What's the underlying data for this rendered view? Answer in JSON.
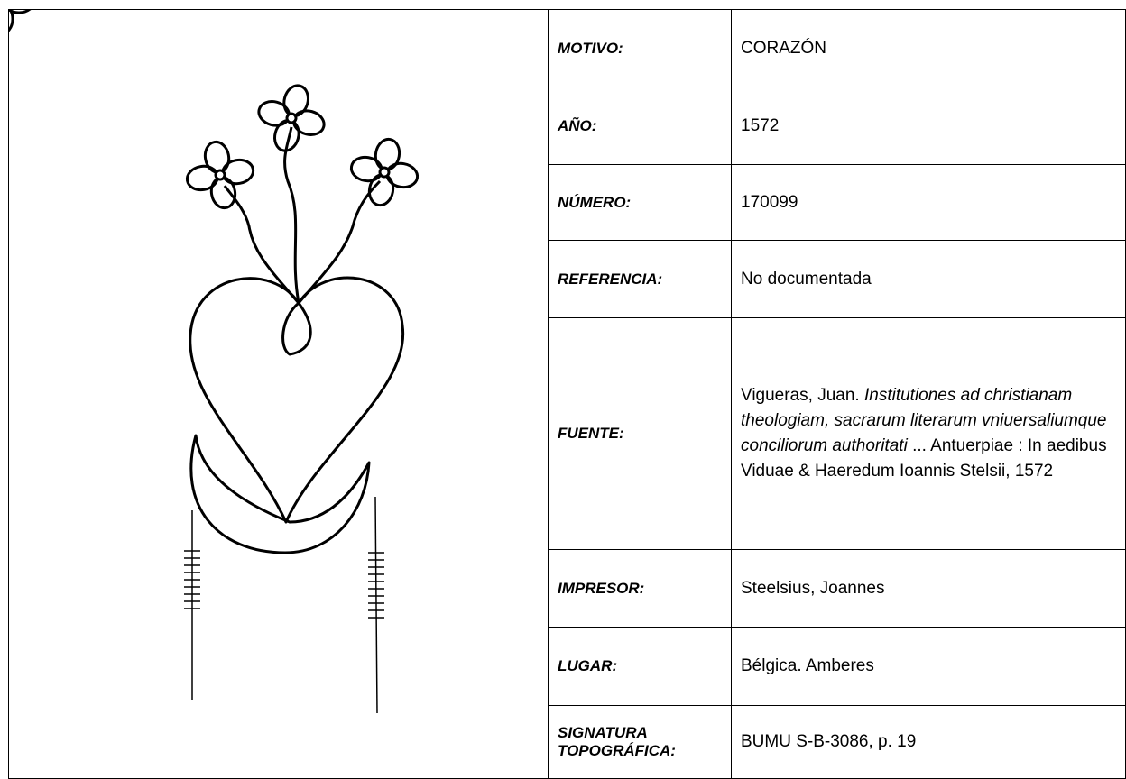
{
  "table": {
    "rows": [
      {
        "label": "MOTIVO:",
        "value": "CORAZÓN"
      },
      {
        "label": "AÑO:",
        "value": "1572"
      },
      {
        "label": "NÚMERO:",
        "value": "170099"
      },
      {
        "label": "REFERENCIA:",
        "value": "No documentada"
      },
      {
        "label": "FUENTE:",
        "parts": [
          {
            "text": "Vigueras, Juan. ",
            "italic": false
          },
          {
            "text": "Institutiones ad christianam theologiam, sacrarum literarum vniuersaliumque conciliorum authoritati",
            "italic": true
          },
          {
            "text": " ... Antuerpiae : In aedibus Viduae & Haeredum Ioannis Stelsii, 1572",
            "italic": false
          }
        ]
      },
      {
        "label": "IMPRESOR:",
        "value": "Steelsius, Joannes"
      },
      {
        "label": "LUGAR:",
        "value": "Bélgica. Amberes"
      },
      {
        "label": "SIGNATURA TOPOGRÁFICA:",
        "value": "BUMU S-B-3086, p. 19"
      }
    ]
  }
}
